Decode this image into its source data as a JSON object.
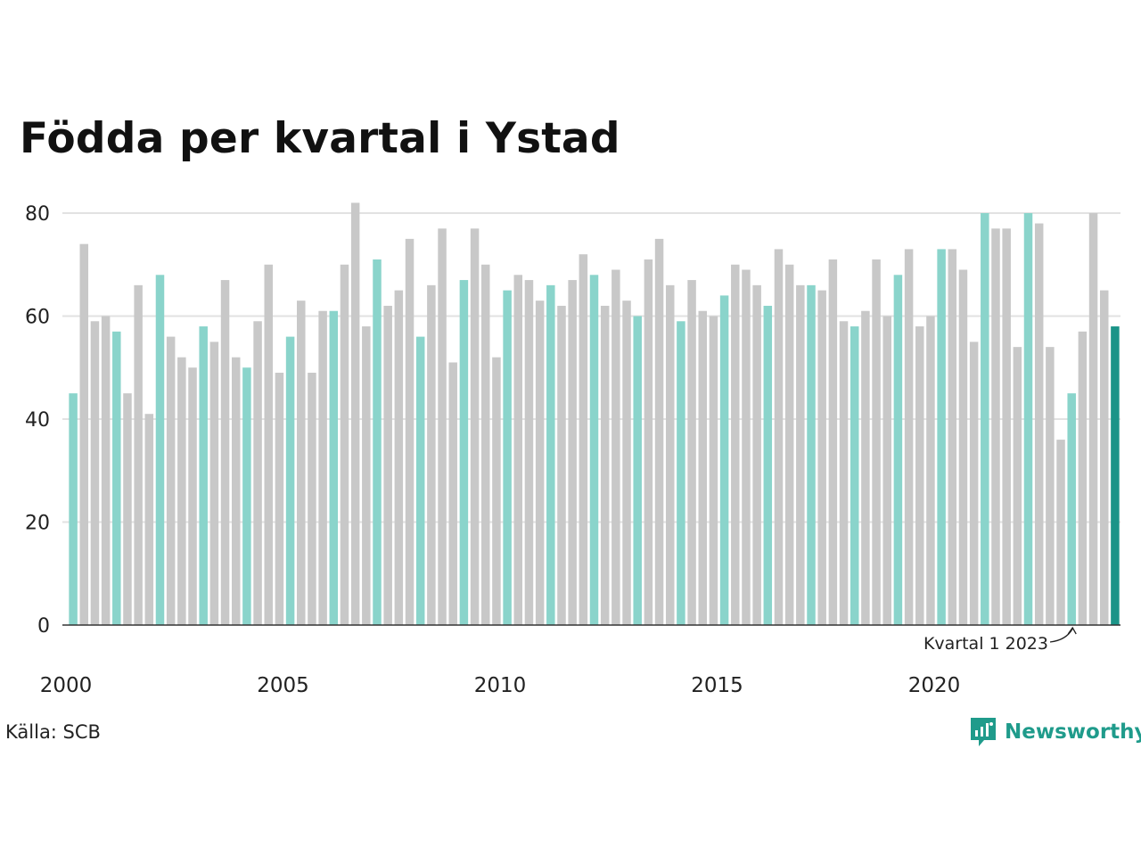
{
  "title": "Födda per kvartal i Ystad",
  "source": "Källa: SCB",
  "brand": "Newsworthy",
  "colors": {
    "highlight": "#8ad4cb",
    "other": "#c8c8c8",
    "latest": "#1b9488",
    "gridline": "#e2e2e2",
    "axis": "#333333",
    "brand": "#1f9b8b"
  },
  "chart_data": {
    "type": "bar",
    "title": "Födda per kvartal i Ystad",
    "xlabel": "",
    "ylabel": "",
    "ylim": [
      0,
      80
    ],
    "yticks": [
      0,
      20,
      40,
      60,
      80
    ],
    "xtick_labels": [
      "2000",
      "2005",
      "2010",
      "2015",
      "2020"
    ],
    "grid": true,
    "annotation": "Kvartal 1 2023",
    "first_quarter": "2000 Q1",
    "highlight_note": "Quarter 1 of each year is highlighted; latest quarter in dark teal",
    "values": [
      45,
      74,
      59,
      60,
      57,
      45,
      66,
      41,
      68,
      56,
      52,
      50,
      58,
      55,
      67,
      52,
      50,
      59,
      70,
      49,
      56,
      63,
      49,
      61,
      61,
      70,
      82,
      58,
      71,
      62,
      65,
      75,
      56,
      66,
      77,
      51,
      67,
      77,
      70,
      52,
      65,
      68,
      67,
      63,
      66,
      62,
      67,
      72,
      68,
      62,
      69,
      63,
      60,
      71,
      75,
      66,
      59,
      67,
      61,
      60,
      64,
      70,
      69,
      66,
      62,
      73,
      70,
      66,
      66,
      65,
      71,
      59,
      58,
      61,
      71,
      60,
      68,
      73,
      58,
      60,
      73,
      73,
      69,
      55,
      80,
      77,
      77,
      54,
      80,
      78,
      54,
      36,
      45,
      57,
      80,
      65,
      58
    ]
  }
}
